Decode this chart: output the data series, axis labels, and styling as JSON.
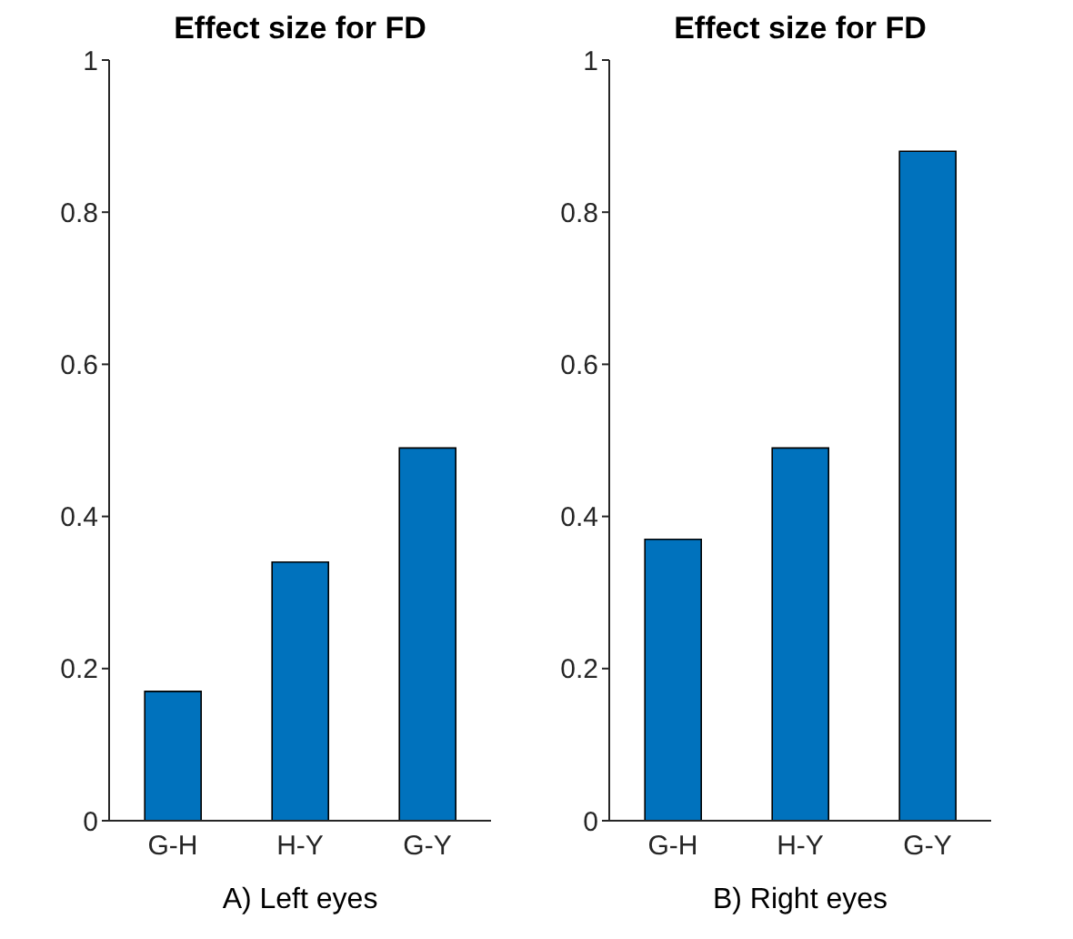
{
  "chart_data": [
    {
      "type": "bar",
      "title": "Effect size for FD",
      "xlabel": "A) Left eyes",
      "categories": [
        "G-H",
        "H-Y",
        "G-Y"
      ],
      "values": [
        0.17,
        0.34,
        0.49
      ],
      "color": "#0072bd",
      "ylim": [
        0,
        1
      ],
      "yticks": [
        0,
        0.2,
        0.4,
        0.6,
        0.8,
        1
      ],
      "grid": false
    },
    {
      "type": "bar",
      "title": "Effect size for FD",
      "xlabel": "B) Right eyes",
      "categories": [
        "G-H",
        "H-Y",
        "G-Y"
      ],
      "values": [
        0.37,
        0.49,
        0.88
      ],
      "color": "#0072bd",
      "ylim": [
        0,
        1
      ],
      "yticks": [
        0,
        0.2,
        0.4,
        0.6,
        0.8,
        1
      ],
      "grid": false
    }
  ]
}
